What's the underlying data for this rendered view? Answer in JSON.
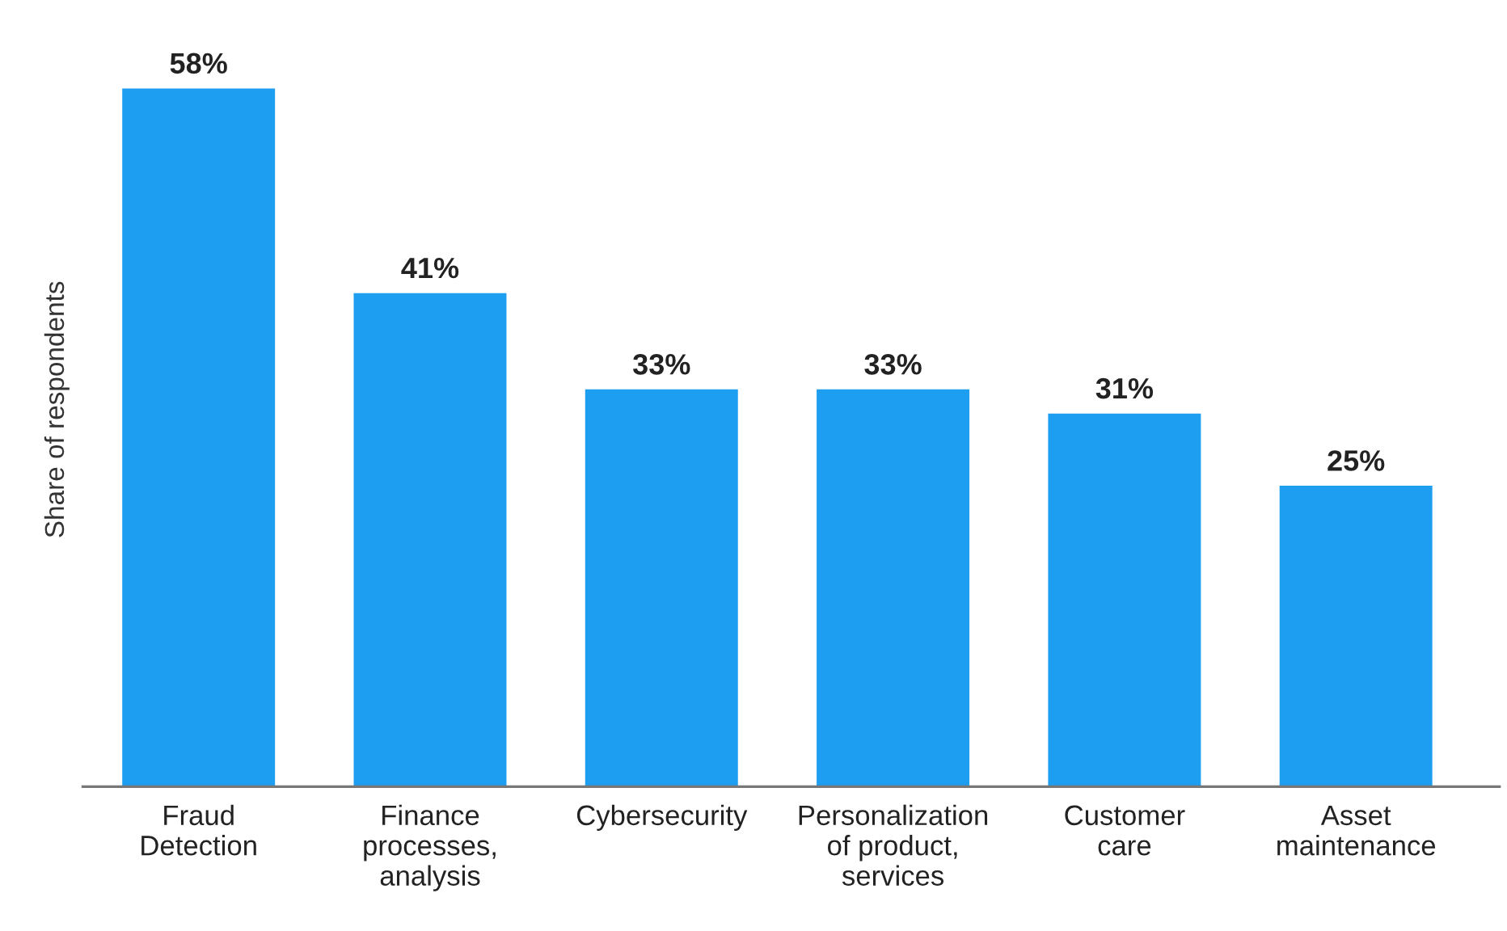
{
  "chart_data": {
    "type": "bar",
    "ylabel": "Share of respondents",
    "categories": [
      "Fraud\nDetection",
      "Finance\nprocesses,\nanalysis",
      "Cybersecurity",
      "Personalization\nof product,\nservices",
      "Customer\ncare",
      "Asset\nmaintenance"
    ],
    "values": [
      58,
      41,
      33,
      33,
      31,
      25
    ],
    "value_labels": [
      "58%",
      "41%",
      "33%",
      "33%",
      "31%",
      "25%"
    ],
    "color": "#1e9ef0"
  }
}
